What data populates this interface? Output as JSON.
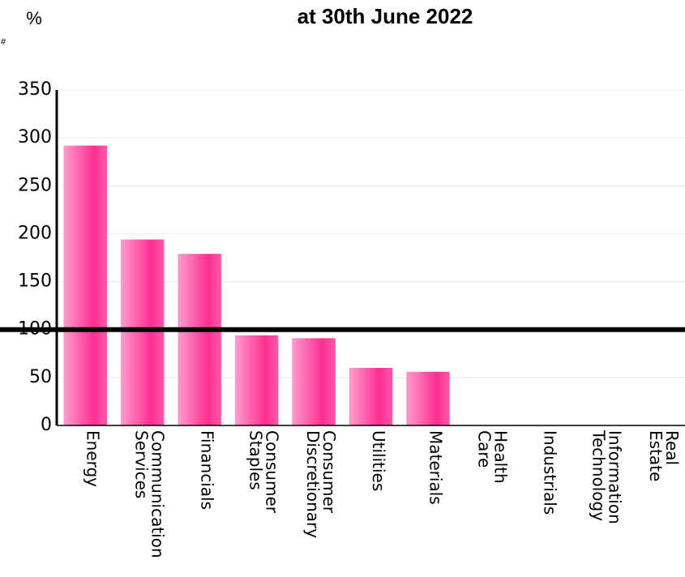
{
  "chart_data": {
    "type": "bar",
    "title": "at 30th June 2022",
    "y_label": "%",
    "corner_mark": "#",
    "categories": [
      "Energy",
      "Communication Services",
      "Financials",
      "Consumer Staples",
      "Consumer Discretionary",
      "Utilities",
      "Materials",
      "Health Care",
      "Industrials",
      "Information Technology",
      "Real Estate"
    ],
    "values": [
      292,
      194,
      179,
      94,
      91,
      60,
      56,
      null,
      null,
      null,
      null
    ],
    "color": "#ff2e93",
    "reference_line": 100,
    "ylim": [
      0,
      350
    ],
    "yticks": [
      0,
      50,
      100,
      150,
      200,
      250,
      300,
      350
    ],
    "grid": true
  }
}
